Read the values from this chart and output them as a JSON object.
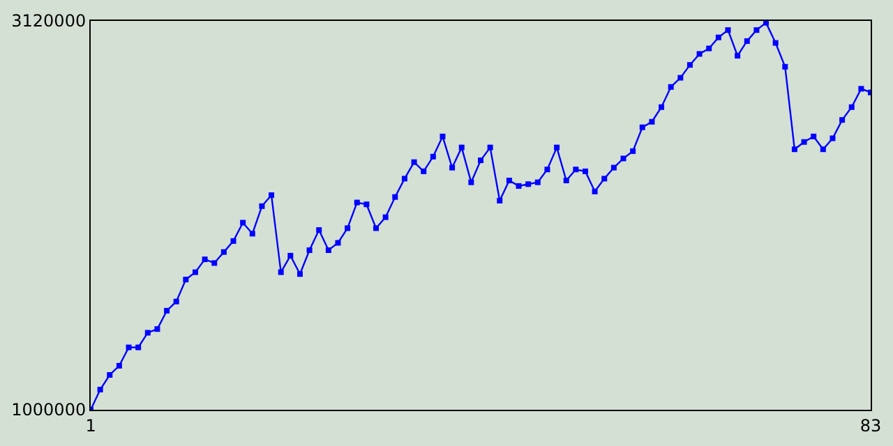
{
  "chart_data": {
    "type": "line",
    "x": [
      1,
      2,
      3,
      4,
      5,
      6,
      7,
      8,
      9,
      10,
      11,
      12,
      13,
      14,
      15,
      16,
      17,
      18,
      19,
      20,
      21,
      22,
      23,
      24,
      25,
      26,
      27,
      28,
      29,
      30,
      31,
      32,
      33,
      34,
      35,
      36,
      37,
      38,
      39,
      40,
      41,
      42,
      43,
      44,
      45,
      46,
      47,
      48,
      49,
      50,
      51,
      52,
      53,
      54,
      55,
      56,
      57,
      58,
      59,
      60,
      61,
      62,
      63,
      64,
      65,
      66,
      67,
      68,
      69,
      70,
      71,
      72,
      73,
      74,
      75,
      76,
      77,
      78,
      79,
      80,
      81,
      82,
      83
    ],
    "series": [
      {
        "color": "#0000ff",
        "values": [
          1000000,
          1110000,
          1190000,
          1240000,
          1340000,
          1340000,
          1420000,
          1440000,
          1540000,
          1590000,
          1710000,
          1750000,
          1820000,
          1800000,
          1860000,
          1920000,
          2020000,
          1960000,
          2110000,
          2170000,
          1750000,
          1840000,
          1740000,
          1870000,
          1980000,
          1870000,
          1910000,
          1990000,
          2130000,
          2120000,
          1990000,
          2050000,
          2160000,
          2260000,
          2350000,
          2300000,
          2380000,
          2490000,
          2320000,
          2430000,
          2240000,
          2360000,
          2430000,
          2140000,
          2250000,
          2220000,
          2230000,
          2240000,
          2310000,
          2430000,
          2250000,
          2310000,
          2300000,
          2190000,
          2260000,
          2320000,
          2370000,
          2410000,
          2540000,
          2570000,
          2650000,
          2760000,
          2810000,
          2880000,
          2940000,
          2970000,
          3030000,
          3070000,
          2930000,
          3010000,
          3070000,
          3110000,
          3000000,
          2870000,
          2420000,
          2460000,
          2490000,
          2420000,
          2480000,
          2580000,
          2650000,
          2750000,
          2730000
        ]
      }
    ],
    "xlim": [
      1,
      83
    ],
    "xticks": [
      1,
      83
    ],
    "ylim": [
      1000000,
      3120000
    ],
    "yticks": [
      1000000,
      3120000
    ],
    "marker": "square",
    "line_style": "solid"
  }
}
